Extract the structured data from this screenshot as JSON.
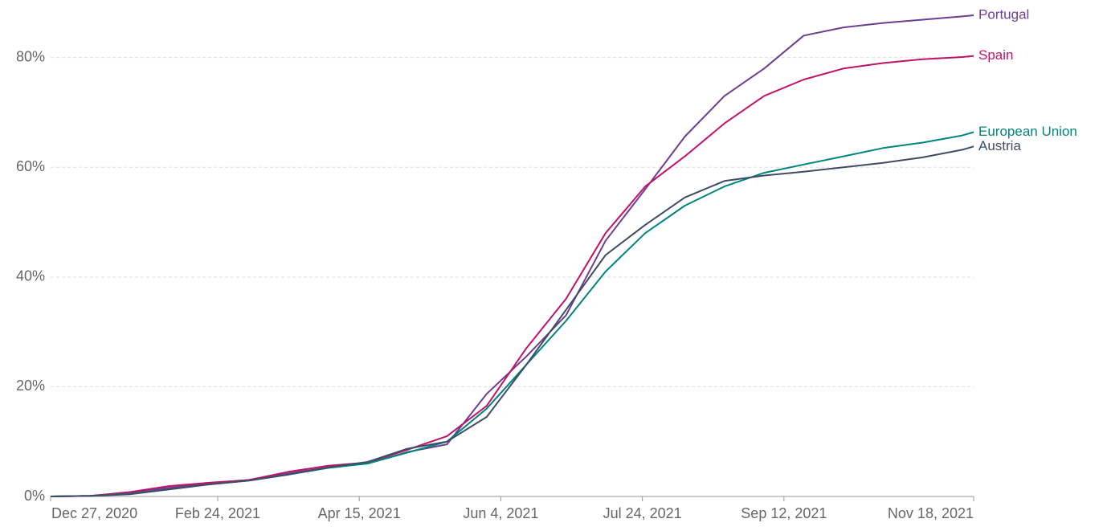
{
  "chart_data": {
    "type": "line",
    "x": [
      "2020-12-27",
      "2021-01-10",
      "2021-01-24",
      "2021-02-07",
      "2021-02-21",
      "2021-03-07",
      "2021-03-21",
      "2021-04-04",
      "2021-04-18",
      "2021-05-02",
      "2021-05-16",
      "2021-05-30",
      "2021-06-13",
      "2021-06-27",
      "2021-07-11",
      "2021-07-25",
      "2021-08-08",
      "2021-08-22",
      "2021-09-05",
      "2021-09-19",
      "2021-10-03",
      "2021-10-17",
      "2021-10-31",
      "2021-11-14",
      "2021-11-18"
    ],
    "series": [
      {
        "name": "Portugal",
        "color": "#6d3e91",
        "values": [
          0,
          0.1,
          0.6,
          1.6,
          2.4,
          3.0,
          4.2,
          5.3,
          6.0,
          8.1,
          9.5,
          18.7,
          25.5,
          33,
          46.6,
          56,
          65.6,
          73,
          78,
          84,
          85.5,
          86.3,
          86.9,
          87.5,
          87.7
        ]
      },
      {
        "name": "Spain",
        "color": "#c0126b",
        "values": [
          0,
          0.1,
          0.8,
          1.9,
          2.5,
          3.0,
          4.5,
          5.6,
          6.2,
          8.5,
          11,
          16.5,
          27,
          36,
          48,
          56.5,
          62,
          68,
          73,
          76,
          78,
          79,
          79.7,
          80.1,
          80.3
        ]
      },
      {
        "name": "European Union",
        "color": "#00847e",
        "values": [
          0,
          0.1,
          0.5,
          1.3,
          2.2,
          2.9,
          4.0,
          5.2,
          6.0,
          8.0,
          10,
          16,
          24,
          32,
          41,
          48,
          53,
          56.5,
          59,
          60.5,
          62,
          63.5,
          64.5,
          65.8,
          66.4
        ]
      },
      {
        "name": "Austria",
        "color": "#3e4c66",
        "values": [
          0,
          0.1,
          0.4,
          1.3,
          2.2,
          2.9,
          4.0,
          5.3,
          6.3,
          8.7,
          10,
          14.5,
          24,
          34,
          44,
          49.5,
          54.5,
          57.5,
          58.5,
          59.2,
          60,
          60.8,
          61.8,
          63.2,
          63.8
        ]
      }
    ],
    "xlim": [
      "2020-12-27",
      "2021-11-18"
    ],
    "xticks": [
      {
        "value": "2020-12-27",
        "label": "Dec 27, 2020"
      },
      {
        "value": "2021-02-24",
        "label": "Feb 24, 2021"
      },
      {
        "value": "2021-04-15",
        "label": "Apr 15, 2021"
      },
      {
        "value": "2021-06-04",
        "label": "Jun 4, 2021"
      },
      {
        "value": "2021-07-24",
        "label": "Jul 24, 2021"
      },
      {
        "value": "2021-09-12",
        "label": "Sep 12, 2021"
      },
      {
        "value": "2021-11-18",
        "label": "Nov 18, 2021"
      }
    ],
    "ylim": [
      0,
      88
    ],
    "yticks": [
      {
        "value": 0,
        "label": "0%"
      },
      {
        "value": 20,
        "label": "20%"
      },
      {
        "value": 40,
        "label": "40%"
      },
      {
        "value": 60,
        "label": "60%"
      },
      {
        "value": 80,
        "label": "80%"
      }
    ],
    "grid": true
  }
}
